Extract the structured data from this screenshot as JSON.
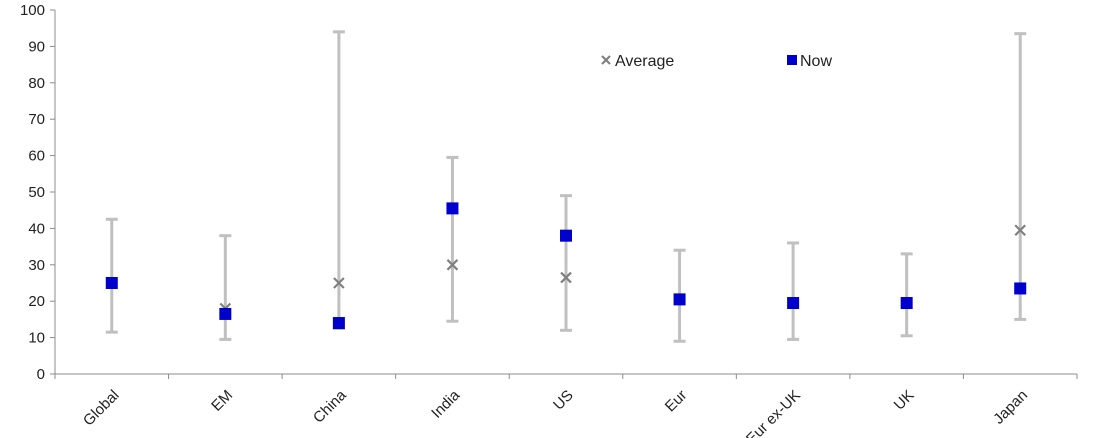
{
  "chart_data": {
    "type": "scatter",
    "categories": [
      "Global",
      "EM",
      "China",
      "India",
      "US",
      "Eur",
      "Eur ex-UK",
      "UK",
      "Japan"
    ],
    "series": [
      {
        "name": "Average",
        "marker": "x",
        "color": "#808080",
        "values": [
          25,
          18,
          25,
          30,
          26.5,
          20.5,
          19.5,
          19.5,
          39.5
        ]
      },
      {
        "name": "Now",
        "marker": "square",
        "color": "#0000cc",
        "values": [
          25,
          16.5,
          14,
          45.5,
          38,
          20.5,
          19.5,
          19.5,
          23.5
        ]
      }
    ],
    "ranges": {
      "low": [
        11.5,
        9.5,
        12.5,
        14.5,
        12,
        9,
        9.5,
        10.5,
        15
      ],
      "high": [
        42.5,
        38,
        94,
        59.5,
        49,
        34,
        36,
        33,
        93.5
      ],
      "color": "#c0c0c0"
    },
    "ylim": [
      0,
      100
    ],
    "yticks": [
      0,
      10,
      20,
      30,
      40,
      50,
      60,
      70,
      80,
      90,
      100
    ],
    "xlabel": "",
    "ylabel": "",
    "grid": false,
    "legend_position": "top-center"
  }
}
